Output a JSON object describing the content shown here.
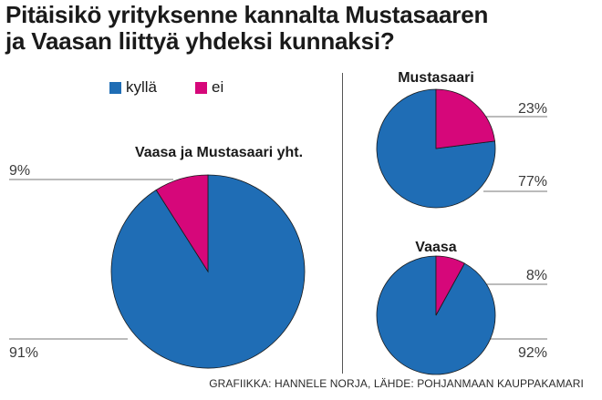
{
  "title_line1": "Pitäisikö yrityksenne kannalta Mustasaaren",
  "title_line2": "ja Vaasan liittyä yhdeksi kunnaksi?",
  "legend": [
    {
      "label": "kyllä",
      "color": "#1f6db5"
    },
    {
      "label": "ei",
      "color": "#d6077a"
    }
  ],
  "credit": "GRAFIIKKA: HANNELE NORJA, LÄHDE: POHJANMAAN KAUPPAKAMARI",
  "chart_data": [
    {
      "type": "pie",
      "title": "Vaasa ja Mustasaari yht.",
      "categories": [
        "kyllä",
        "ei"
      ],
      "values": [
        91,
        9
      ],
      "labels": [
        "91%",
        "9%"
      ],
      "colors": [
        "#1f6db5",
        "#d6077a"
      ]
    },
    {
      "type": "pie",
      "title": "Mustasaari",
      "categories": [
        "kyllä",
        "ei"
      ],
      "values": [
        77,
        23
      ],
      "labels": [
        "77%",
        "23%"
      ],
      "colors": [
        "#1f6db5",
        "#d6077a"
      ]
    },
    {
      "type": "pie",
      "title": "Vaasa",
      "categories": [
        "kyllä",
        "ei"
      ],
      "values": [
        92,
        8
      ],
      "labels": [
        "92%",
        "8%"
      ],
      "colors": [
        "#1f6db5",
        "#d6077a"
      ]
    }
  ]
}
